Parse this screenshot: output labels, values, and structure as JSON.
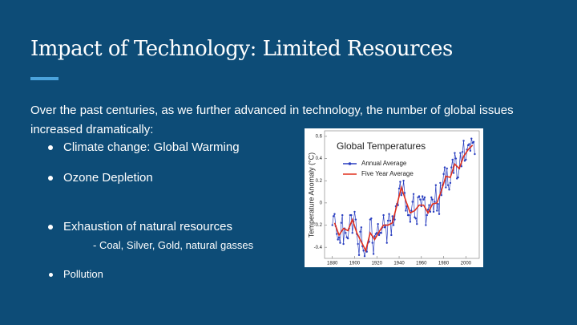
{
  "slide": {
    "title": "Impact of Technology: Limited Resources",
    "intro": "Over the past centuries, as we further advanced in technology, the number of global issues increased dramatically:",
    "bullets": [
      "Climate change: Global Warming",
      "Ozone Depletion",
      "Exhaustion of natural resources"
    ],
    "sub_bullet": "- Coal, Silver, Gold, natural gasses",
    "last_bullet": "Pollution"
  },
  "chart_data": {
    "type": "line",
    "title": "Global Temperatures",
    "y_label": "Temperature Anomaly (°C)",
    "xlim": [
      1873,
      2012
    ],
    "xticks": [
      1880,
      1900,
      1920,
      1940,
      1960,
      1980,
      2000
    ],
    "ylim": [
      -0.5,
      0.65
    ],
    "yticks": [
      0.6,
      0.4,
      0.2,
      0,
      -0.2,
      -0.4
    ],
    "series": [
      {
        "name": "Annual Average",
        "color": "#2a3fc0",
        "markers": true,
        "x": [
          1880,
          1881,
          1882,
          1883,
          1884,
          1885,
          1886,
          1887,
          1888,
          1889,
          1890,
          1891,
          1892,
          1893,
          1894,
          1895,
          1896,
          1897,
          1898,
          1899,
          1900,
          1901,
          1902,
          1903,
          1904,
          1905,
          1906,
          1907,
          1908,
          1909,
          1910,
          1911,
          1912,
          1913,
          1914,
          1915,
          1916,
          1917,
          1918,
          1919,
          1920,
          1921,
          1922,
          1923,
          1924,
          1925,
          1926,
          1927,
          1928,
          1929,
          1930,
          1931,
          1932,
          1933,
          1934,
          1935,
          1936,
          1937,
          1938,
          1939,
          1940,
          1941,
          1942,
          1943,
          1944,
          1945,
          1946,
          1947,
          1948,
          1949,
          1950,
          1951,
          1952,
          1953,
          1954,
          1955,
          1956,
          1957,
          1958,
          1959,
          1960,
          1961,
          1962,
          1963,
          1964,
          1965,
          1966,
          1967,
          1968,
          1969,
          1970,
          1971,
          1972,
          1973,
          1974,
          1975,
          1976,
          1977,
          1978,
          1979,
          1980,
          1981,
          1982,
          1983,
          1984,
          1985,
          1986,
          1987,
          1988,
          1989,
          1990,
          1991,
          1992,
          1993,
          1994,
          1995,
          1996,
          1997,
          1998,
          1999,
          2000,
          2001,
          2002,
          2003,
          2004,
          2005,
          2006,
          2007,
          2008
        ],
        "values": [
          -0.2,
          -0.12,
          -0.1,
          -0.21,
          -0.28,
          -0.33,
          -0.31,
          -0.36,
          -0.18,
          -0.11,
          -0.37,
          -0.23,
          -0.27,
          -0.31,
          -0.32,
          -0.23,
          -0.11,
          -0.11,
          -0.27,
          -0.17,
          -0.08,
          -0.15,
          -0.28,
          -0.37,
          -0.47,
          -0.26,
          -0.22,
          -0.39,
          -0.43,
          -0.48,
          -0.43,
          -0.44,
          -0.36,
          -0.35,
          -0.15,
          -0.14,
          -0.36,
          -0.46,
          -0.3,
          -0.28,
          -0.27,
          -0.19,
          -0.29,
          -0.27,
          -0.27,
          -0.22,
          -0.11,
          -0.22,
          -0.2,
          -0.36,
          -0.16,
          -0.1,
          -0.16,
          -0.29,
          -0.12,
          -0.2,
          -0.15,
          -0.03,
          -0.01,
          -0.02,
          0.13,
          0.19,
          0.07,
          0.09,
          0.2,
          0.09,
          -0.07,
          -0.03,
          -0.11,
          -0.11,
          -0.17,
          -0.07,
          0.01,
          0.08,
          -0.13,
          -0.14,
          -0.19,
          0.05,
          0.06,
          0.03,
          -0.03,
          0.06,
          0.03,
          0.05,
          -0.2,
          -0.11,
          -0.06,
          -0.02,
          -0.08,
          0.05,
          0.03,
          -0.08,
          0.01,
          0.16,
          -0.07,
          -0.01,
          -0.1,
          0.18,
          0.07,
          0.16,
          0.26,
          0.32,
          0.14,
          0.31,
          0.16,
          0.12,
          0.18,
          0.32,
          0.39,
          0.27,
          0.45,
          0.4,
          0.22,
          0.23,
          0.31,
          0.45,
          0.33,
          0.46,
          0.56,
          0.38,
          0.39,
          0.48,
          0.52,
          0.53,
          0.47,
          0.58,
          0.54,
          0.55,
          0.44
        ]
      },
      {
        "name": "Five Year Average",
        "color": "#e0301e",
        "markers": false,
        "x": [
          1882,
          1886,
          1890,
          1894,
          1898,
          1902,
          1906,
          1910,
          1914,
          1918,
          1922,
          1926,
          1930,
          1934,
          1938,
          1942,
          1946,
          1950,
          1954,
          1958,
          1962,
          1966,
          1970,
          1974,
          1978,
          1982,
          1986,
          1990,
          1994,
          1998,
          2002,
          2006
        ],
        "values": [
          -0.18,
          -0.29,
          -0.23,
          -0.25,
          -0.15,
          -0.27,
          -0.35,
          -0.43,
          -0.27,
          -0.33,
          -0.26,
          -0.2,
          -0.2,
          -0.18,
          -0.02,
          0.14,
          0.02,
          -0.09,
          -0.07,
          -0.02,
          -0.02,
          -0.09,
          -0.01,
          0.0,
          0.11,
          0.24,
          0.23,
          0.35,
          0.31,
          0.42,
          0.48,
          0.52
        ]
      }
    ]
  }
}
